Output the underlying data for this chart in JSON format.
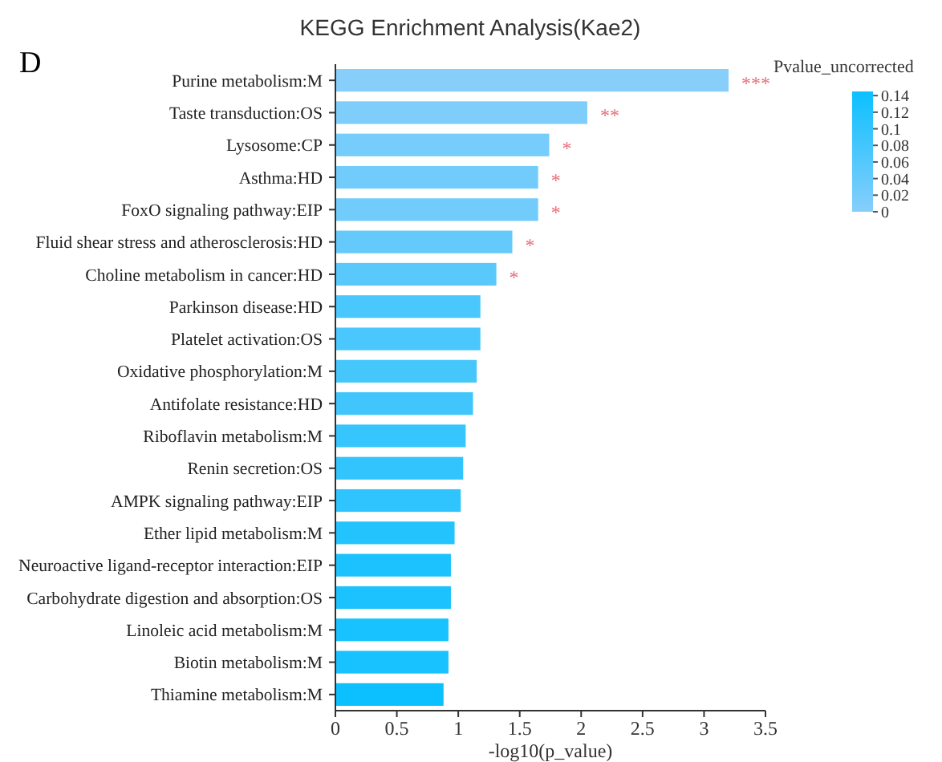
{
  "chart_data": {
    "type": "bar",
    "orientation": "horizontal",
    "title": "KEGG Enrichment Analysis(Kae2)",
    "xlabel": "-log10(p_value)",
    "clabel": "Pvalue_uncorrected",
    "categories": [
      "Purine metabolism:M",
      "Taste transduction:OS",
      "Lysosome:CP",
      "Asthma:HD",
      "FoxO signaling pathway:EIP",
      "Fluid shear stress and atherosclerosis:HD",
      "Choline metabolism in cancer:HD",
      "Parkinson disease:HD",
      "Platelet activation:OS",
      "Oxidative phosphorylation:M",
      "Antifolate resistance:HD",
      "Riboflavin metabolism:M",
      "Renin secretion:OS",
      "AMPK signaling pathway:EIP",
      "Ether lipid metabolism:M",
      "Neuroactive ligand-receptor interaction:EIP",
      "Carbohydrate digestion and absorption:OS",
      "Linoleic acid metabolism:M",
      "Biotin metabolism:M",
      "Thiamine metabolism:M"
    ],
    "values": [
      3.2,
      2.05,
      1.74,
      1.65,
      1.65,
      1.44,
      1.31,
      1.18,
      1.18,
      1.15,
      1.12,
      1.06,
      1.04,
      1.02,
      0.97,
      0.94,
      0.94,
      0.92,
      0.92,
      0.88
    ],
    "colors": [
      "#87cefa",
      "#7fcdfa",
      "#76ccfb",
      "#72ccfb",
      "#72ccfb",
      "#65cafb",
      "#59c9fc",
      "#4ac7fc",
      "#4ac7fc",
      "#45c7fc",
      "#40c6fd",
      "#36c5fd",
      "#32c5fd",
      "#2fc4fd",
      "#23c3fe",
      "#1cc2fe",
      "#1cc2fe",
      "#17c2fe",
      "#17c2fe",
      "#0cc0ff"
    ],
    "xlim": [
      0,
      3.5
    ],
    "xticks": [
      0,
      0.5,
      1,
      1.5,
      2,
      2.5,
      3,
      3.5
    ],
    "clim": [
      0,
      0.145
    ],
    "cticks": [
      0,
      0.02,
      0.04,
      0.06,
      0.08,
      0.1,
      0.12,
      0.14
    ],
    "annotations": [
      "D",
      {
        "text": "***",
        "x": 3.2,
        "y": "Purine metabolism:M"
      },
      {
        "text": "**",
        "x": 2.05,
        "y": "Taste transduction:OS"
      },
      {
        "text": "*",
        "x": 1.74,
        "y": "Lysosome:CP"
      },
      {
        "text": "*",
        "x": 1.65,
        "y": "Asthma:HD"
      },
      {
        "text": "*",
        "x": 1.65,
        "y": "FoxO signaling pathway:EIP"
      },
      {
        "text": "*",
        "x": 1.44,
        "y": "Fluid shear stress and atherosclerosis:HD"
      },
      {
        "text": "*",
        "x": 1.31,
        "y": "Choline metabolism in cancer:HD"
      }
    ],
    "tick_labels": "x"
  }
}
